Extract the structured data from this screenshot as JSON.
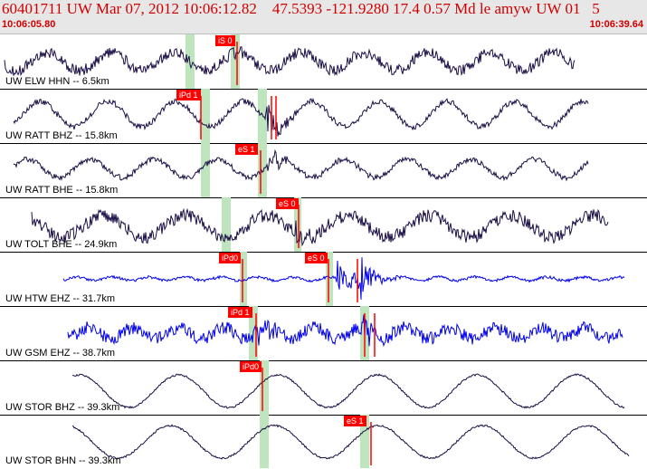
{
  "header": {
    "title": "60401711 UW Mar 07, 2012 10:06:12.82    47.5393 -121.9280 17.4 0.57 Md le amyw UW 01   5",
    "start_time": "10:06:05.80",
    "end_time": "10:06:39.64"
  },
  "colors": {
    "title_red": "#d00000",
    "pick_red": "#ff0000",
    "window_green": "#bfe5bf",
    "trace_dark": "#1a0d45",
    "trace_blue": "#0000ee"
  },
  "traces": [
    {
      "label": "UW ELW HHN -- 6.5km",
      "color": "dark",
      "picks": [
        {
          "text": "iS 0"
        }
      ]
    },
    {
      "label": "UW RATT BHZ -- 15.8km",
      "color": "dark",
      "picks": [
        {
          "text": "iPd 1"
        }
      ]
    },
    {
      "label": "UW RATT BHE -- 15.8km",
      "color": "dark",
      "picks": [
        {
          "text": "eS 1"
        }
      ]
    },
    {
      "label": "UW TOLT BHE -- 24.9km",
      "color": "dark",
      "picks": [
        {
          "text": "eS 0"
        }
      ]
    },
    {
      "label": "UW HTW EHZ -- 31.7km",
      "color": "blue",
      "picks": [
        {
          "text": "iPd0"
        },
        {
          "text": "eS 0"
        }
      ]
    },
    {
      "label": "UW GSM EHZ -- 38.7km",
      "color": "blue",
      "picks": [
        {
          "text": "iPd 1"
        }
      ]
    },
    {
      "label": "UW STOR BHZ -- 39.3km",
      "color": "dark",
      "picks": [
        {
          "text": "iPd0"
        }
      ]
    },
    {
      "label": "UW STOR BHN -- 39.3km",
      "color": "dark",
      "picks": [
        {
          "text": "eS 1"
        }
      ]
    }
  ]
}
